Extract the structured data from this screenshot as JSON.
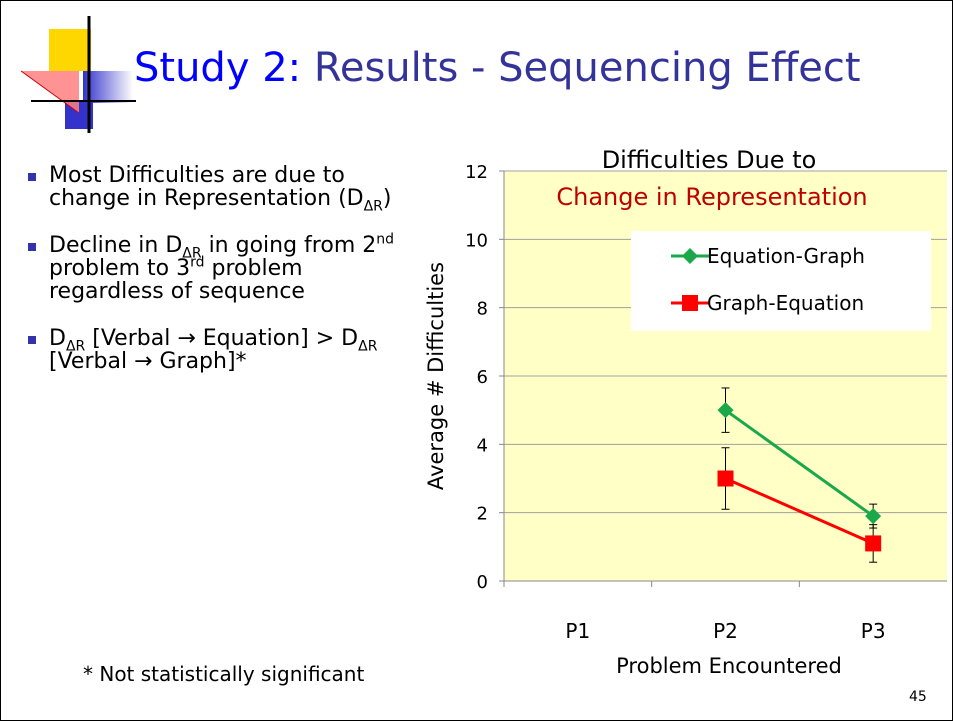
{
  "header": {
    "title_lead": "Study 2:",
    "title_rest": "Results - Sequencing Effect"
  },
  "bullets": [
    [
      {
        "text": "Most Difficulties are due to change in Representation (D"
      },
      {
        "text": "ΔR",
        "sub": true
      },
      {
        "text": ")"
      }
    ],
    [
      {
        "text": "Decline in D"
      },
      {
        "text": "ΔR",
        "sub": true
      },
      {
        "text": " in going from 2"
      },
      {
        "text": "nd",
        "sup": true
      },
      {
        "text": " problem to 3"
      },
      {
        "text": "rd",
        "sup": true
      },
      {
        "text": " problem regardless of sequence"
      }
    ],
    [
      {
        "text": "D"
      },
      {
        "text": "ΔR",
        "sub": true
      },
      {
        "text": " [Verbal → Equation] > D"
      },
      {
        "text": "ΔR",
        "sub": true
      },
      {
        "text": " [Verbal → Graph]*"
      }
    ]
  ],
  "footnote": "* Not statistically significant",
  "page_number": "45",
  "chart_data": {
    "type": "line",
    "title": "Difficulties Due to",
    "subtitle": "Change in Representation",
    "x_label": "Problem Encountered",
    "y_label": "Average # Difficulties",
    "categories": [
      "P1",
      "P2",
      "P3"
    ],
    "series": [
      {
        "name": "Equation-Graph",
        "color": "#1aa84a",
        "marker": "diamond",
        "values": [
          null,
          5,
          1.9
        ],
        "errors": [
          null,
          0.65,
          0.35
        ]
      },
      {
        "name": "Graph-Equation",
        "color": "#ff0000",
        "marker": "square",
        "values": [
          null,
          3,
          1.1
        ],
        "errors": [
          null,
          0.9,
          0.55
        ]
      }
    ],
    "ylim": [
      0,
      12
    ],
    "yticks": [
      0,
      2,
      4,
      6,
      8,
      10,
      12
    ],
    "grid": true,
    "legend": "upper right",
    "background": "#ffffc6"
  }
}
